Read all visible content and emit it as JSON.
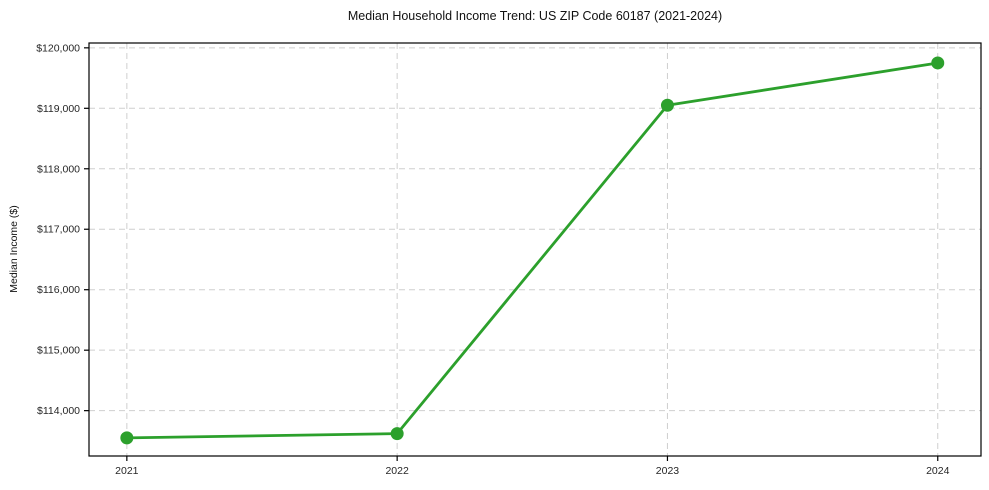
{
  "chart_data": {
    "type": "line",
    "title": "Median Household Income Trend: US ZIP Code 60187 (2021-2024)",
    "xlabel": "",
    "ylabel": "Median Income ($)",
    "x": [
      2021,
      2022,
      2023,
      2024
    ],
    "x_tick_labels": [
      "2021",
      "2022",
      "2023",
      "2024"
    ],
    "values": [
      113550,
      113620,
      119050,
      119750
    ],
    "y_ticks": [
      114000,
      115000,
      116000,
      117000,
      118000,
      119000,
      120000
    ],
    "y_tick_labels": [
      "$114,000",
      "$115,000",
      "$116,000",
      "$117,000",
      "$118,000",
      "$119,000",
      "$120,000"
    ],
    "xlim": [
      2020.86,
      2024.16
    ],
    "ylim": [
      113250,
      120080
    ],
    "grid": true,
    "legend": "none",
    "styles": {
      "line_color": "#2ca02c",
      "marker_color": "#2ca02c",
      "grid_color": "#cfcfcf",
      "grid_dash": "6 4",
      "axis_color": "#000000",
      "text_color": "#262626",
      "background": "#ffffff"
    }
  }
}
